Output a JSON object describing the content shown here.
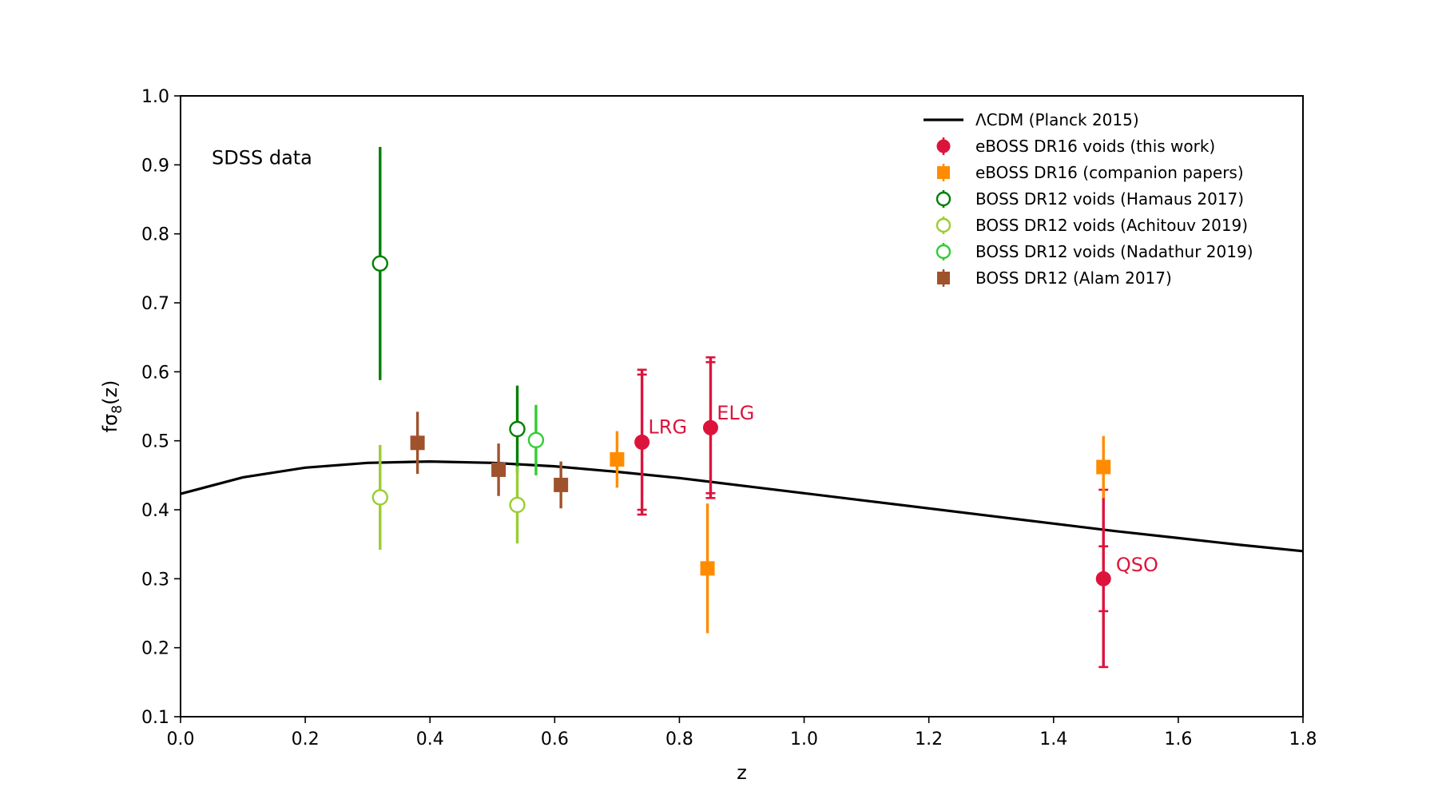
{
  "chart_data": {
    "type": "scatter",
    "xlabel": "z",
    "ylabel_main": "fσ",
    "ylabel_sub": "8",
    "ylabel_tail": "(z)",
    "xlim": [
      0.0,
      1.8
    ],
    "ylim": [
      0.1,
      1.0
    ],
    "xticks": [
      "0.0",
      "0.2",
      "0.4",
      "0.6",
      "0.8",
      "1.0",
      "1.2",
      "1.4",
      "1.6",
      "1.8"
    ],
    "yticks": [
      "0.1",
      "0.2",
      "0.3",
      "0.4",
      "0.5",
      "0.6",
      "0.7",
      "0.8",
      "0.9",
      "1.0"
    ],
    "grid": false,
    "legend_position": "top-right",
    "annotations": [
      {
        "text": "SDSS data",
        "x": 0.05,
        "y": 0.91,
        "color": "#000000"
      },
      {
        "text": "LRG",
        "x": 0.75,
        "y": 0.52,
        "color": "#dc143c"
      },
      {
        "text": "ELG",
        "x": 0.86,
        "y": 0.54,
        "color": "#dc143c"
      },
      {
        "text": "QSO",
        "x": 1.5,
        "y": 0.32,
        "color": "#dc143c"
      }
    ],
    "model": {
      "name": "ΛCDM (Planck 2015)",
      "color": "#000000",
      "x": [
        0.0,
        0.1,
        0.2,
        0.3,
        0.4,
        0.5,
        0.6,
        0.7,
        0.8,
        0.9,
        1.0,
        1.1,
        1.2,
        1.3,
        1.4,
        1.5,
        1.6,
        1.7,
        1.8
      ],
      "y": [
        0.423,
        0.447,
        0.461,
        0.468,
        0.47,
        0.468,
        0.463,
        0.455,
        0.446,
        0.435,
        0.424,
        0.413,
        0.402,
        0.391,
        0.38,
        0.369,
        0.359,
        0.349,
        0.34
      ]
    },
    "series": [
      {
        "name": "eBOSS DR16 voids (this work)",
        "marker": "circle-filled",
        "color": "#dc143c",
        "points": [
          {
            "x": 0.74,
            "y": 0.498,
            "yerr": [
              0.393,
              0.603
            ],
            "inner": [
              0.4,
              0.596
            ]
          },
          {
            "x": 0.85,
            "y": 0.519,
            "yerr": [
              0.417,
              0.621
            ],
            "inner": [
              0.424,
              0.614
            ]
          },
          {
            "x": 1.48,
            "y": 0.3,
            "yerr": [
              0.172,
              0.429
            ],
            "inner": [
              0.253,
              0.347
            ]
          }
        ]
      },
      {
        "name": "eBOSS DR16 (companion papers)",
        "marker": "square-filled",
        "color": "#ff8c00",
        "points": [
          {
            "x": 0.7,
            "y": 0.473,
            "yerr": [
              0.432,
              0.514
            ]
          },
          {
            "x": 0.845,
            "y": 0.315,
            "yerr": [
              0.221,
              0.409
            ]
          },
          {
            "x": 1.48,
            "y": 0.462,
            "yerr": [
              0.417,
              0.507
            ]
          }
        ]
      },
      {
        "name": "BOSS DR12 voids (Hamaus 2017)",
        "marker": "circle-open",
        "color": "#008000",
        "points": [
          {
            "x": 0.32,
            "y": 0.757,
            "yerr": [
              0.588,
              0.926
            ]
          },
          {
            "x": 0.54,
            "y": 0.517,
            "yerr": [
              0.454,
              0.58
            ]
          }
        ]
      },
      {
        "name": "BOSS DR12 voids (Achitouv 2019)",
        "marker": "circle-open",
        "color": "#9acd32",
        "points": [
          {
            "x": 0.32,
            "y": 0.418,
            "yerr": [
              0.342,
              0.494
            ]
          },
          {
            "x": 0.54,
            "y": 0.407,
            "yerr": [
              0.351,
              0.463
            ]
          }
        ]
      },
      {
        "name": "BOSS DR12 voids (Nadathur 2019)",
        "marker": "circle-open",
        "color": "#32cd32",
        "points": [
          {
            "x": 0.57,
            "y": 0.501,
            "yerr": [
              0.45,
              0.552
            ]
          }
        ]
      },
      {
        "name": "BOSS DR12 (Alam 2017)",
        "marker": "square-filled",
        "color": "#a0522d",
        "points": [
          {
            "x": 0.38,
            "y": 0.497,
            "yerr": [
              0.452,
              0.542
            ]
          },
          {
            "x": 0.51,
            "y": 0.458,
            "yerr": [
              0.42,
              0.496
            ]
          },
          {
            "x": 0.61,
            "y": 0.436,
            "yerr": [
              0.402,
              0.47
            ]
          }
        ]
      }
    ]
  }
}
